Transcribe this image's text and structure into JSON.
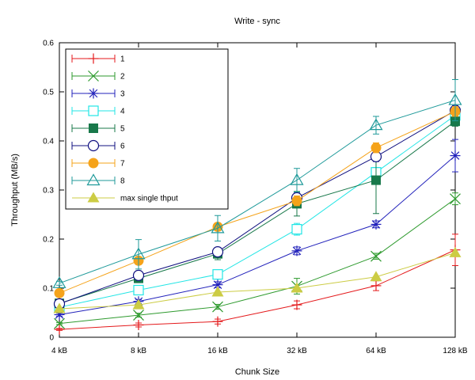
{
  "chart_data": {
    "type": "line",
    "title": "Write - sync",
    "xlabel": "Chunk Size",
    "ylabel": "Throughput (MB/s)",
    "categories": [
      "4 kB",
      "8 kB",
      "16 kB",
      "32 kB",
      "64 kB",
      "128 kB"
    ],
    "ylim": [
      0,
      0.6
    ],
    "yticks": [
      "0",
      "0.1",
      "0.2",
      "0.3",
      "0.4",
      "0.5",
      "0.6"
    ],
    "grid": false,
    "legend_position": "top-left",
    "series": [
      {
        "name": "1",
        "color": "#e41a1c",
        "marker": "plus",
        "values": [
          0.016,
          0.025,
          0.032,
          0.066,
          0.105,
          0.178
        ],
        "err": [
          0.002,
          0.004,
          0.005,
          0.008,
          0.01,
          0.032
        ]
      },
      {
        "name": "2",
        "color": "#2e9a2e",
        "marker": "x",
        "values": [
          0.028,
          0.045,
          0.062,
          0.104,
          0.165,
          0.282
        ],
        "err": [
          0.002,
          0.004,
          0.005,
          0.016,
          0.006,
          0.012
        ]
      },
      {
        "name": "3",
        "color": "#2222bb",
        "marker": "asterisk",
        "values": [
          0.046,
          0.073,
          0.107,
          0.176,
          0.23,
          0.37
        ],
        "err": [
          0.003,
          0.004,
          0.006,
          0.008,
          0.007,
          0.033
        ]
      },
      {
        "name": "4",
        "color": "#22e5e5",
        "marker": "square-open",
        "values": [
          0.061,
          0.096,
          0.128,
          0.22,
          0.336,
          0.452
        ],
        "err": [
          0.003,
          0.006,
          0.008,
          0.012,
          0.01,
          0.01
        ]
      },
      {
        "name": "5",
        "color": "#18784a",
        "marker": "square-filled",
        "values": [
          0.069,
          0.12,
          0.17,
          0.272,
          0.32,
          0.44
        ],
        "err": [
          0.004,
          0.008,
          0.012,
          0.025,
          0.068,
          0.01
        ]
      },
      {
        "name": "6",
        "color": "#101080",
        "marker": "circle-open",
        "values": [
          0.068,
          0.126,
          0.174,
          0.284,
          0.368,
          0.462
        ],
        "err": [
          0.004,
          0.006,
          0.008,
          0.01,
          0.01,
          0.01
        ]
      },
      {
        "name": "7",
        "color": "#f5a31a",
        "marker": "circle-filled",
        "values": [
          0.09,
          0.156,
          0.225,
          0.278,
          0.386,
          0.46
        ],
        "err": [
          0.004,
          0.006,
          0.008,
          0.01,
          0.01,
          0.01
        ]
      },
      {
        "name": "8",
        "color": "#1f9a9a",
        "marker": "triangle-open",
        "values": [
          0.11,
          0.169,
          0.222,
          0.32,
          0.432,
          0.483
        ],
        "err": [
          0.004,
          0.03,
          0.026,
          0.024,
          0.018,
          0.042
        ]
      },
      {
        "name": "max single thput",
        "color": "#cccc44",
        "marker": "triangle-filled",
        "values": [
          0.058,
          0.066,
          0.092,
          0.1,
          0.123,
          0.172
        ],
        "err": null
      }
    ]
  }
}
